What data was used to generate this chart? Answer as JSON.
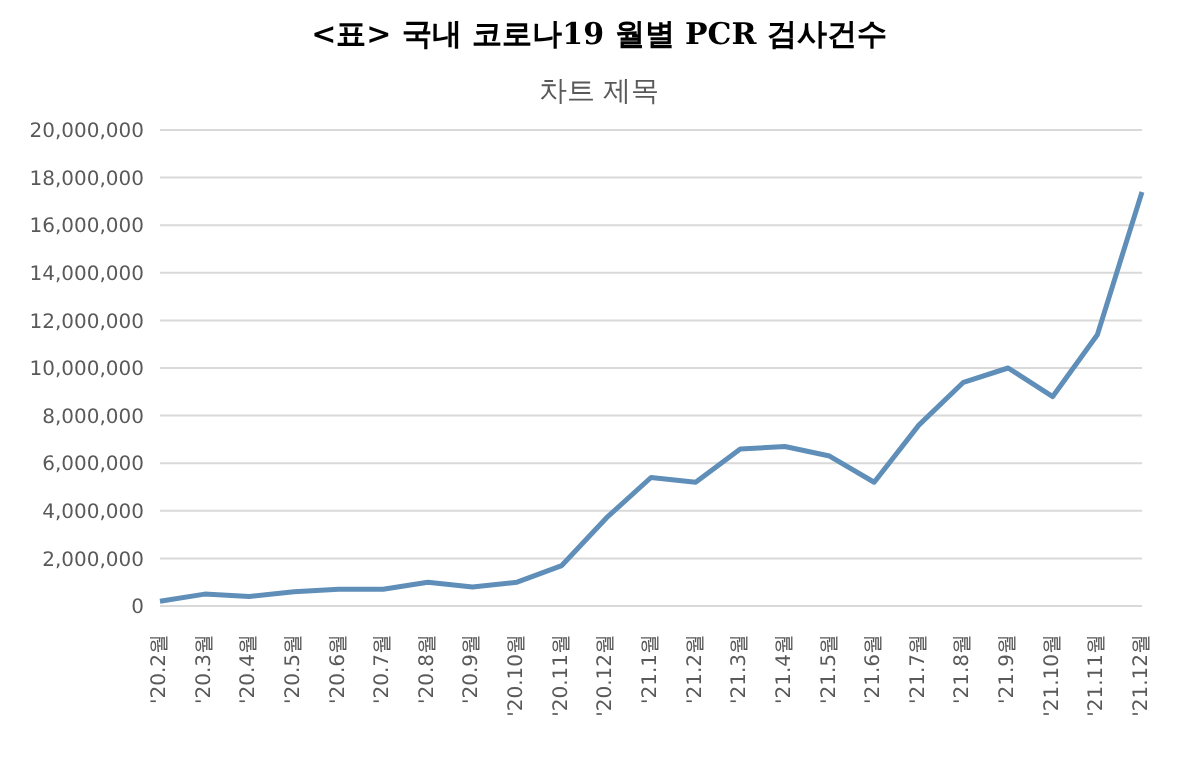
{
  "chart_data": {
    "type": "line",
    "title": "<표> 국내 코로나19 월별 PCR 검사건수",
    "subtitle": "차트 제목",
    "categories": [
      "'20.2월",
      "'20.3월",
      "'20.4월",
      "'20.5월",
      "'20.6월",
      "'20.7월",
      "'20.8월",
      "'20.9월",
      "'20.10월",
      "'20.11월",
      "'20.12월",
      "'21.1월",
      "'21.2월",
      "'21.3월",
      "'21.4월",
      "'21.5월",
      "'21.6월",
      "'21.7월",
      "'21.8월",
      "'21.9월",
      "'21.10월",
      "'21.11월",
      "'21.12월"
    ],
    "series": [
      {
        "color": "#5f8fb8",
        "values": [
          200000,
          500000,
          400000,
          600000,
          700000,
          700000,
          1000000,
          800000,
          1000000,
          1700000,
          3700000,
          5400000,
          5200000,
          6600000,
          6700000,
          6300000,
          5200000,
          7600000,
          9400000,
          10000000,
          8800000,
          11400000,
          17400000
        ]
      }
    ],
    "ylim": [
      0,
      20000000
    ],
    "yticks": [
      0,
      {
        "value": 2000000,
        "label": "2,000,000"
      },
      {
        "value": 4000000,
        "label": "4,000,000"
      },
      {
        "value": 6000000,
        "label": "6,000,000"
      },
      {
        "value": 8000000,
        "label": "8,000,000"
      },
      {
        "value": 10000000,
        "label": "10,000,000"
      },
      {
        "value": 12000000,
        "label": "12,000,000"
      },
      {
        "value": 14000000,
        "label": "14,000,000"
      },
      {
        "value": 16000000,
        "label": "16,000,000"
      },
      {
        "value": 18000000,
        "label": "18,000,000"
      },
      {
        "value": 20000000,
        "label": "20,000,000"
      }
    ],
    "grid": "y",
    "marker": "none",
    "line_style": "solid"
  }
}
